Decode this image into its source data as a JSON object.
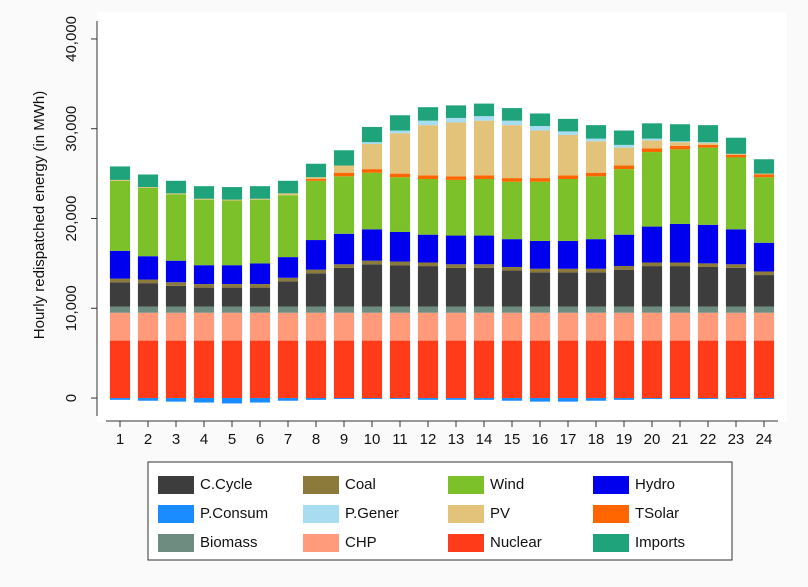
{
  "chart_data": {
    "type": "stacked_bar",
    "y_label": "Hourly redispatched energy (in MWh)",
    "categories": [
      "1",
      "2",
      "3",
      "4",
      "5",
      "6",
      "7",
      "8",
      "9",
      "10",
      "11",
      "12",
      "13",
      "14",
      "15",
      "16",
      "17",
      "18",
      "19",
      "20",
      "21",
      "22",
      "23",
      "24"
    ],
    "ylim": [
      -2000,
      42000
    ],
    "yticks": [
      0,
      {
        "value": 10000,
        "label": "10,000"
      },
      {
        "value": 20000,
        "label": "20,000"
      },
      {
        "value": 30000,
        "label": "30,000"
      },
      {
        "value": 40000,
        "label": "40,000"
      }
    ],
    "legend": "bottom",
    "series": [
      {
        "name": "C.Cycle",
        "color": "#3d3d3d",
        "values": [
          2700,
          2600,
          2300,
          2100,
          2100,
          2100,
          2800,
          3700,
          4300,
          4700,
          4600,
          4500,
          4300,
          4300,
          4000,
          3800,
          3800,
          3800,
          4100,
          4500,
          4500,
          4400,
          4300,
          3500
        ]
      },
      {
        "name": "Coal",
        "color": "#8b7a3a",
        "values": [
          400,
          400,
          400,
          400,
          400,
          400,
          400,
          400,
          400,
          400,
          400,
          400,
          400,
          400,
          400,
          400,
          400,
          400,
          400,
          400,
          400,
          400,
          400,
          400
        ]
      },
      {
        "name": "Wind",
        "color": "#7cc02a",
        "values": [
          7800,
          7600,
          7400,
          7300,
          7200,
          7100,
          6900,
          6600,
          6400,
          6300,
          6100,
          6200,
          6200,
          6300,
          6400,
          6600,
          6900,
          7000,
          7300,
          8300,
          8300,
          8600,
          8000,
          7300
        ]
      },
      {
        "name": "Hydro",
        "color": "#0000ee",
        "values": [
          3100,
          2600,
          2400,
          2100,
          2100,
          2300,
          2300,
          3300,
          3400,
          3500,
          3300,
          3100,
          3200,
          3200,
          3100,
          3100,
          3100,
          3300,
          3500,
          4000,
          4300,
          4300,
          3900,
          3200
        ]
      },
      {
        "name": "P.Consum",
        "color": "#1a8cff",
        "values": [
          -200,
          -300,
          -400,
          -500,
          -600,
          -500,
          -300,
          -200,
          -100,
          -100,
          -100,
          -200,
          -200,
          -200,
          -300,
          -400,
          -400,
          -300,
          -200,
          -100,
          -100,
          -100,
          -100,
          -100
        ]
      },
      {
        "name": "P.Gener",
        "color": "#a8dcf0",
        "values": [
          0,
          0,
          0,
          0,
          0,
          0,
          0,
          0,
          0,
          200,
          300,
          500,
          500,
          500,
          500,
          500,
          400,
          300,
          300,
          200,
          100,
          100,
          0,
          0
        ]
      },
      {
        "name": "PV",
        "color": "#e3c27a",
        "values": [
          100,
          100,
          100,
          100,
          100,
          100,
          200,
          200,
          800,
          2800,
          4500,
          5600,
          6000,
          6100,
          5900,
          5300,
          4500,
          3500,
          2000,
          900,
          400,
          200,
          100,
          100
        ]
      },
      {
        "name": "TSolar",
        "color": "#ff6600",
        "values": [
          0,
          0,
          0,
          0,
          0,
          0,
          0,
          200,
          400,
          400,
          400,
          400,
          400,
          400,
          400,
          400,
          400,
          400,
          400,
          400,
          400,
          300,
          300,
          300
        ]
      },
      {
        "name": "Biomass",
        "color": "#6e8c80",
        "values": [
          700,
          700,
          700,
          700,
          700,
          700,
          700,
          700,
          700,
          700,
          700,
          700,
          700,
          700,
          700,
          700,
          700,
          700,
          700,
          700,
          700,
          700,
          700,
          700
        ]
      },
      {
        "name": "CHP",
        "color": "#ff9a7a",
        "values": [
          3100,
          3100,
          3100,
          3100,
          3100,
          3100,
          3100,
          3100,
          3100,
          3100,
          3100,
          3100,
          3100,
          3100,
          3100,
          3100,
          3100,
          3100,
          3100,
          3100,
          3100,
          3100,
          3100,
          3100
        ]
      },
      {
        "name": "Nuclear",
        "color": "#ff3b1a",
        "values": [
          6400,
          6400,
          6400,
          6400,
          6400,
          6400,
          6400,
          6400,
          6400,
          6400,
          6400,
          6400,
          6400,
          6400,
          6400,
          6400,
          6400,
          6400,
          6400,
          6400,
          6400,
          6400,
          6400,
          6400
        ]
      },
      {
        "name": "Imports",
        "color": "#1fa37a",
        "values": [
          1500,
          1400,
          1400,
          1400,
          1400,
          1400,
          1400,
          1500,
          1700,
          1700,
          1700,
          1500,
          1400,
          1400,
          1400,
          1400,
          1400,
          1500,
          1600,
          1700,
          1900,
          1900,
          1800,
          1600
        ]
      }
    ]
  }
}
